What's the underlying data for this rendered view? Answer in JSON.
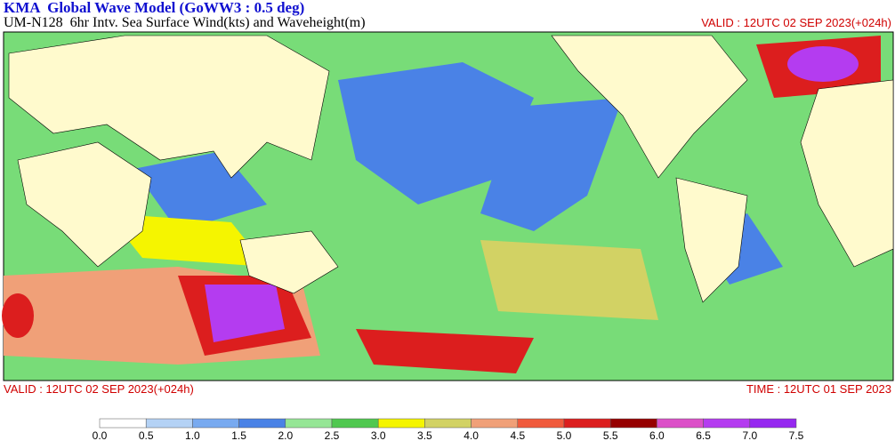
{
  "header": {
    "title": "KMA  Global Wave Model (GoWW3 : 0.5 deg)",
    "subtitle": "UM-N128  6hr Intv. Sea Surface Wind(kts) and Waveheight(m)",
    "valid_top": "VALID : 12UTC 02 SEP 2023(+024h)"
  },
  "footer": {
    "valid": "VALID : 12UTC 02 SEP 2023(+024h)",
    "time": "TIME : 12UTC 01 SEP 2023"
  },
  "colorbar": {
    "labels": [
      "0.0",
      "0.5",
      "1.0",
      "1.5",
      "2.0",
      "2.5",
      "3.0",
      "3.5",
      "4.0",
      "4.5",
      "5.0",
      "5.5",
      "6.0",
      "6.5",
      "7.0",
      "7.5"
    ],
    "colors": [
      "#ffffff",
      "#b4d2f5",
      "#78aaf0",
      "#4a82e6",
      "#96e696",
      "#50c850",
      "#f5f500",
      "#d2d264",
      "#f0a078",
      "#f05a3c",
      "#dc1e1e",
      "#960000",
      "#dc50c8",
      "#b43cf0",
      "#9628f0"
    ]
  }
}
